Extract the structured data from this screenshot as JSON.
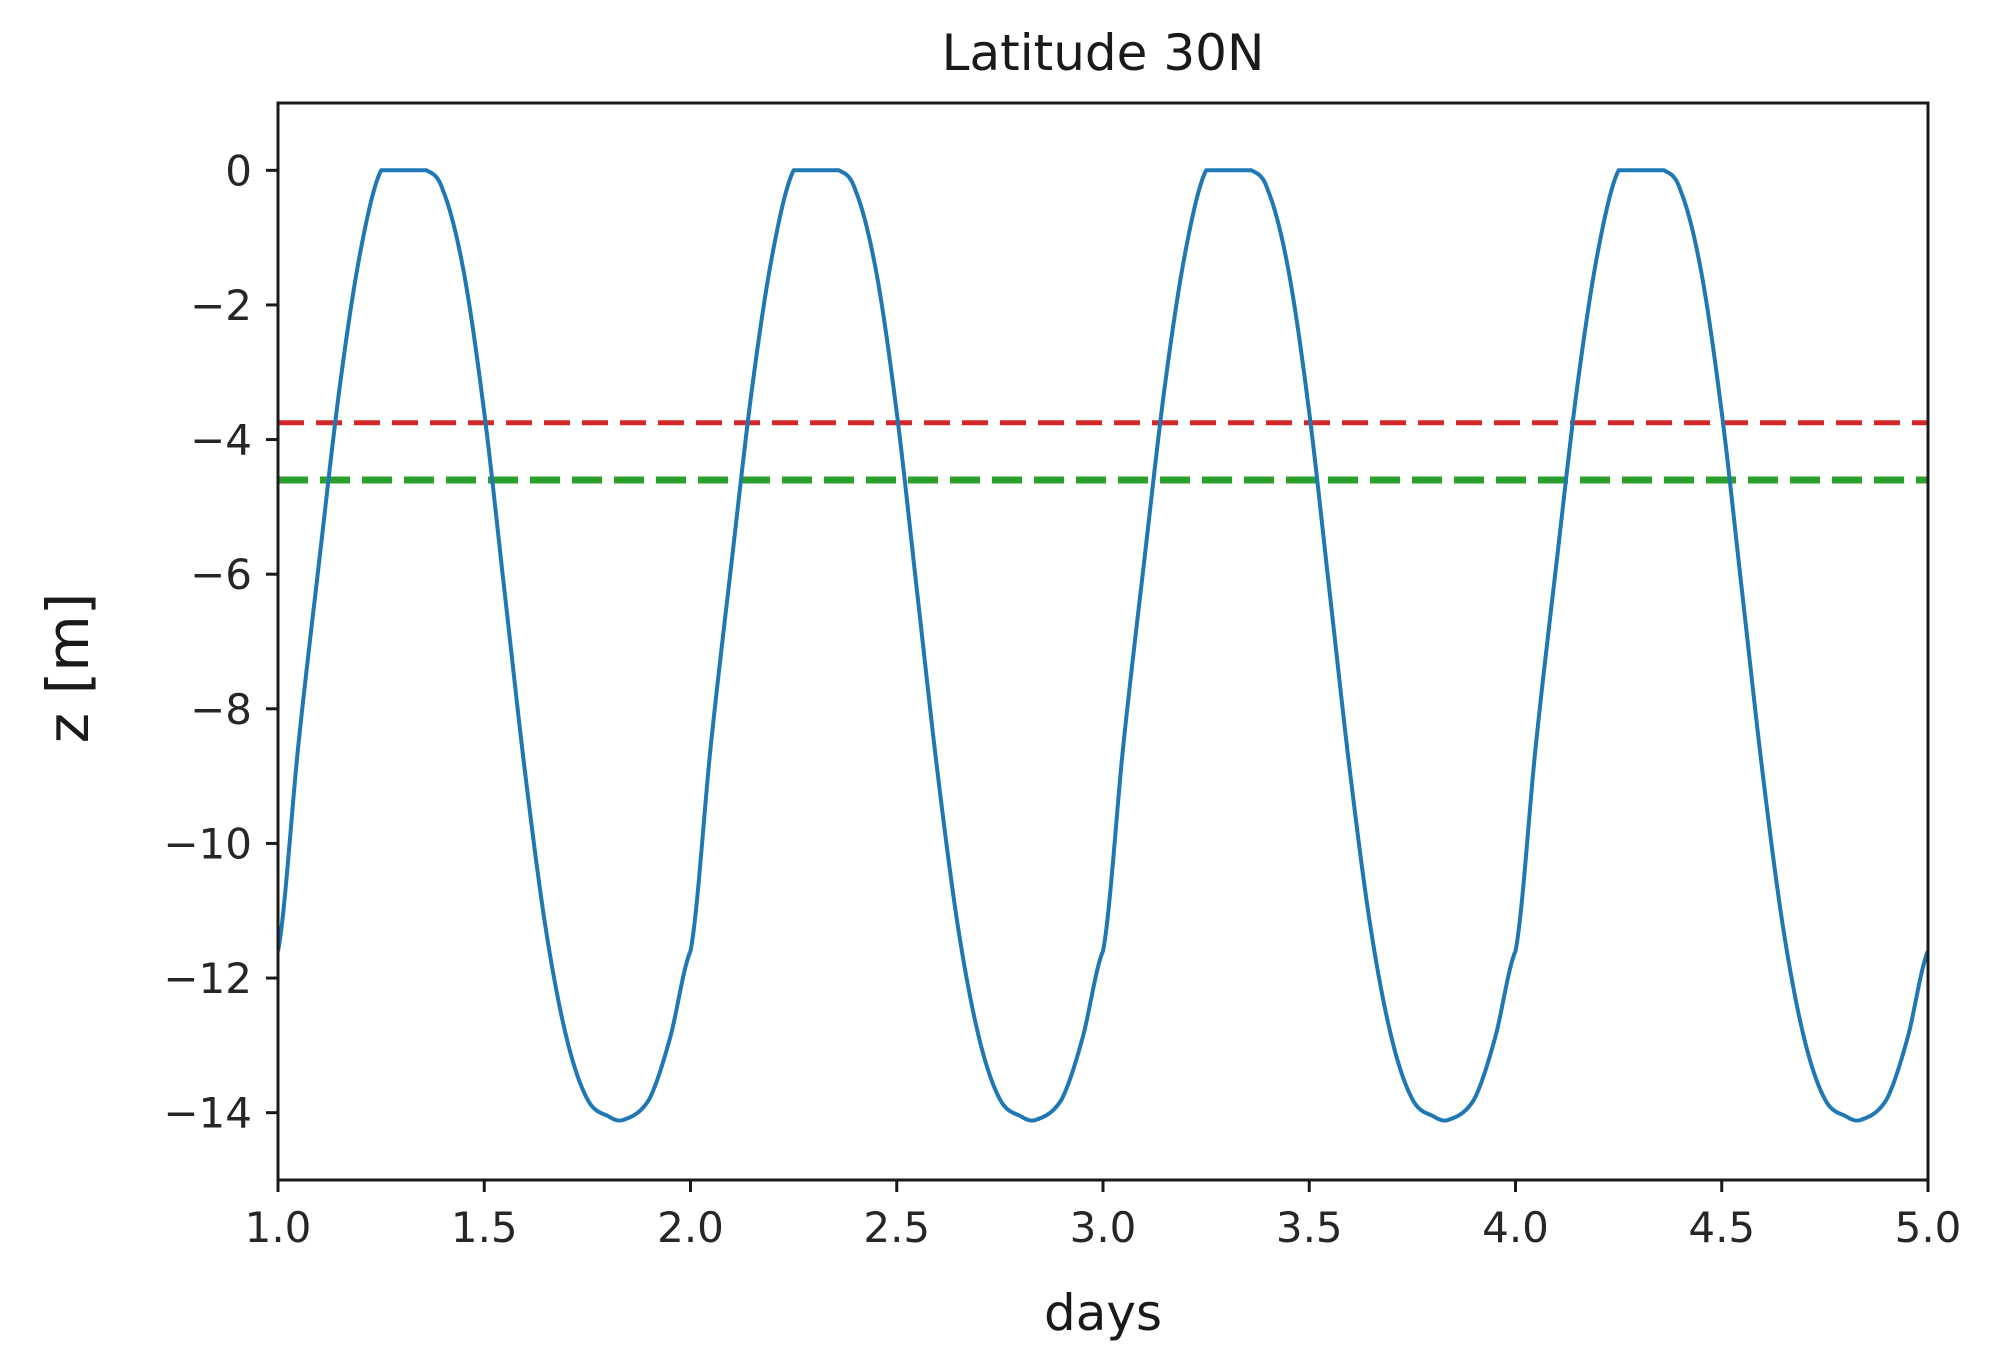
{
  "chart_data": {
    "type": "line",
    "title": "Latitude 30N",
    "xlabel": "days",
    "ylabel": "z [m]",
    "xlim": [
      1.0,
      5.0
    ],
    "ylim": [
      -15,
      1
    ],
    "grid": false,
    "xticks": [
      "1.0",
      "1.5",
      "2.0",
      "2.5",
      "3.0",
      "3.5",
      "4.0",
      "4.5",
      "5.0"
    ],
    "xtick_values": [
      1.0,
      1.5,
      2.0,
      2.5,
      3.0,
      3.5,
      4.0,
      4.5,
      5.0
    ],
    "yticks": [
      "0",
      "−2",
      "−4",
      "−6",
      "−8",
      "−10",
      "−12",
      "−14"
    ],
    "ytick_values": [
      0,
      -2,
      -4,
      -6,
      -8,
      -10,
      -12,
      -14
    ],
    "series": [
      {
        "style": "solid",
        "color": "#1f77b4",
        "period_days": 1.0,
        "x": [
          1.0,
          1.05,
          1.1,
          1.15,
          1.2,
          1.25,
          1.3,
          1.36,
          1.4,
          1.45,
          1.5,
          1.55,
          1.6,
          1.65,
          1.7,
          1.75,
          1.8,
          1.84,
          1.9,
          1.95,
          2.0,
          2.05,
          2.1,
          2.15,
          2.2,
          2.25,
          2.3,
          2.36,
          2.4,
          2.45,
          2.5,
          2.55,
          2.6,
          2.65,
          2.7,
          2.75,
          2.8,
          2.84,
          2.9,
          2.95,
          3.0,
          3.05,
          3.1,
          3.15,
          3.2,
          3.25,
          3.3,
          3.36,
          3.4,
          3.45,
          3.5,
          3.55,
          3.6,
          3.65,
          3.7,
          3.75,
          3.8,
          3.84,
          3.9,
          3.95,
          4.0,
          4.05,
          4.1,
          4.15,
          4.2,
          4.25,
          4.3,
          4.36,
          4.4,
          4.45,
          4.5,
          4.55,
          4.6,
          4.65,
          4.7,
          4.75,
          4.8,
          4.84,
          4.9,
          4.95,
          5.0
        ],
        "y": [
          -11.6,
          -8.5,
          -5.8,
          -3.2,
          -1.2,
          0.0,
          0.0,
          0.0,
          -0.3,
          -1.5,
          -3.6,
          -6.3,
          -9.0,
          -11.3,
          -12.9,
          -13.8,
          -14.05,
          -14.1,
          -13.8,
          -12.9,
          -11.6,
          -8.5,
          -5.8,
          -3.2,
          -1.2,
          0.0,
          0.0,
          0.0,
          -0.3,
          -1.5,
          -3.6,
          -6.3,
          -9.0,
          -11.3,
          -12.9,
          -13.8,
          -14.05,
          -14.1,
          -13.8,
          -12.9,
          -11.6,
          -8.5,
          -5.8,
          -3.2,
          -1.2,
          0.0,
          0.0,
          0.0,
          -0.3,
          -1.5,
          -3.6,
          -6.3,
          -9.0,
          -11.3,
          -12.9,
          -13.8,
          -14.05,
          -14.1,
          -13.8,
          -12.9,
          -11.6,
          -8.5,
          -5.8,
          -3.2,
          -1.2,
          0.0,
          0.0,
          0.0,
          -0.3,
          -1.5,
          -3.6,
          -6.3,
          -9.0,
          -11.3,
          -12.9,
          -13.8,
          -14.05,
          -14.1,
          -13.8,
          -12.9,
          -11.6
        ]
      },
      {
        "style": "dashed",
        "color": "#d62728",
        "x": [
          1.0,
          5.0
        ],
        "y": [
          -3.75,
          -3.75
        ]
      },
      {
        "style": "dashed",
        "color": "#2ca02c",
        "x": [
          1.0,
          5.0
        ],
        "y": [
          -4.6,
          -4.6
        ]
      }
    ]
  }
}
